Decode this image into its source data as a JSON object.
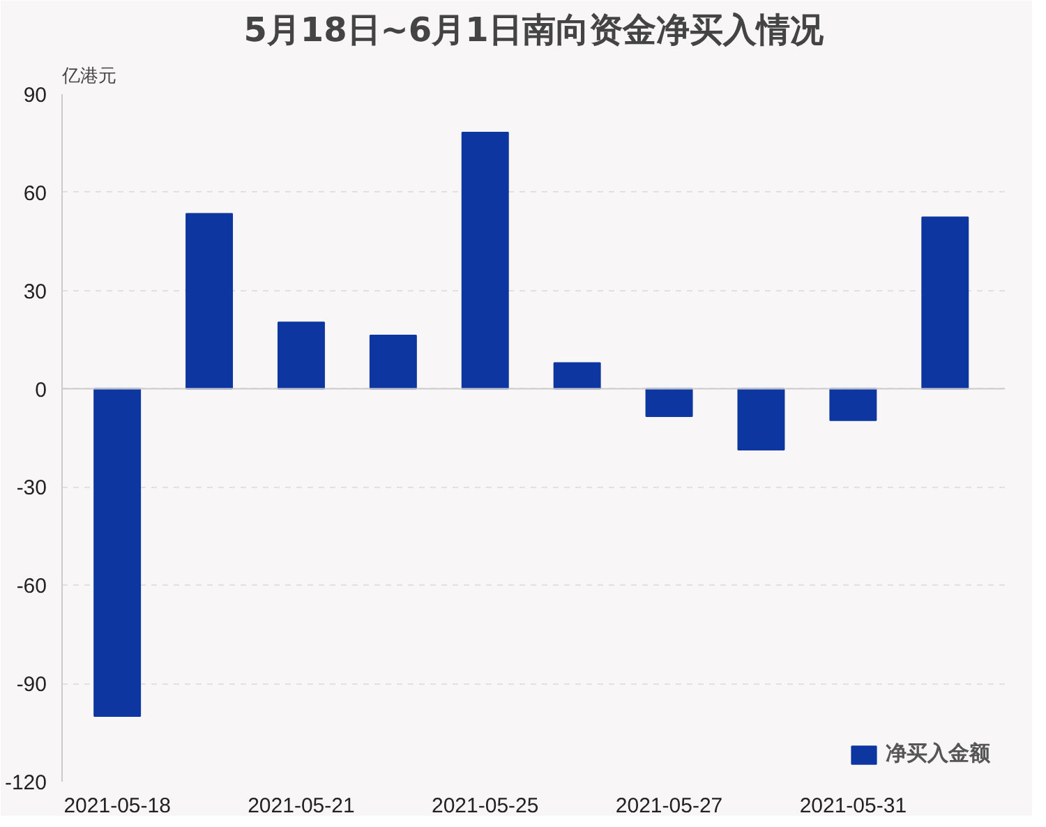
{
  "chart_data": {
    "type": "bar",
    "title": "5月18日~6月1日南向资金净买入情况",
    "ylabel": "亿港元",
    "categories": [
      "2021-05-18",
      null,
      "2021-05-21",
      null,
      "2021-05-25",
      null,
      "2021-05-27",
      null,
      "2021-05-31",
      null
    ],
    "series": [
      {
        "name": "净买入金额",
        "color": "#0d36a0",
        "values": [
          -100,
          53.5,
          20.3,
          16.3,
          78.3,
          7.9,
          -8.4,
          -18.6,
          -9.6,
          52.4
        ]
      }
    ],
    "ylim": [
      -120,
      90
    ],
    "yticks": [
      -120,
      -90,
      -60,
      -30,
      0,
      30,
      60,
      90
    ],
    "grid": "y",
    "legend": "bottom right"
  }
}
